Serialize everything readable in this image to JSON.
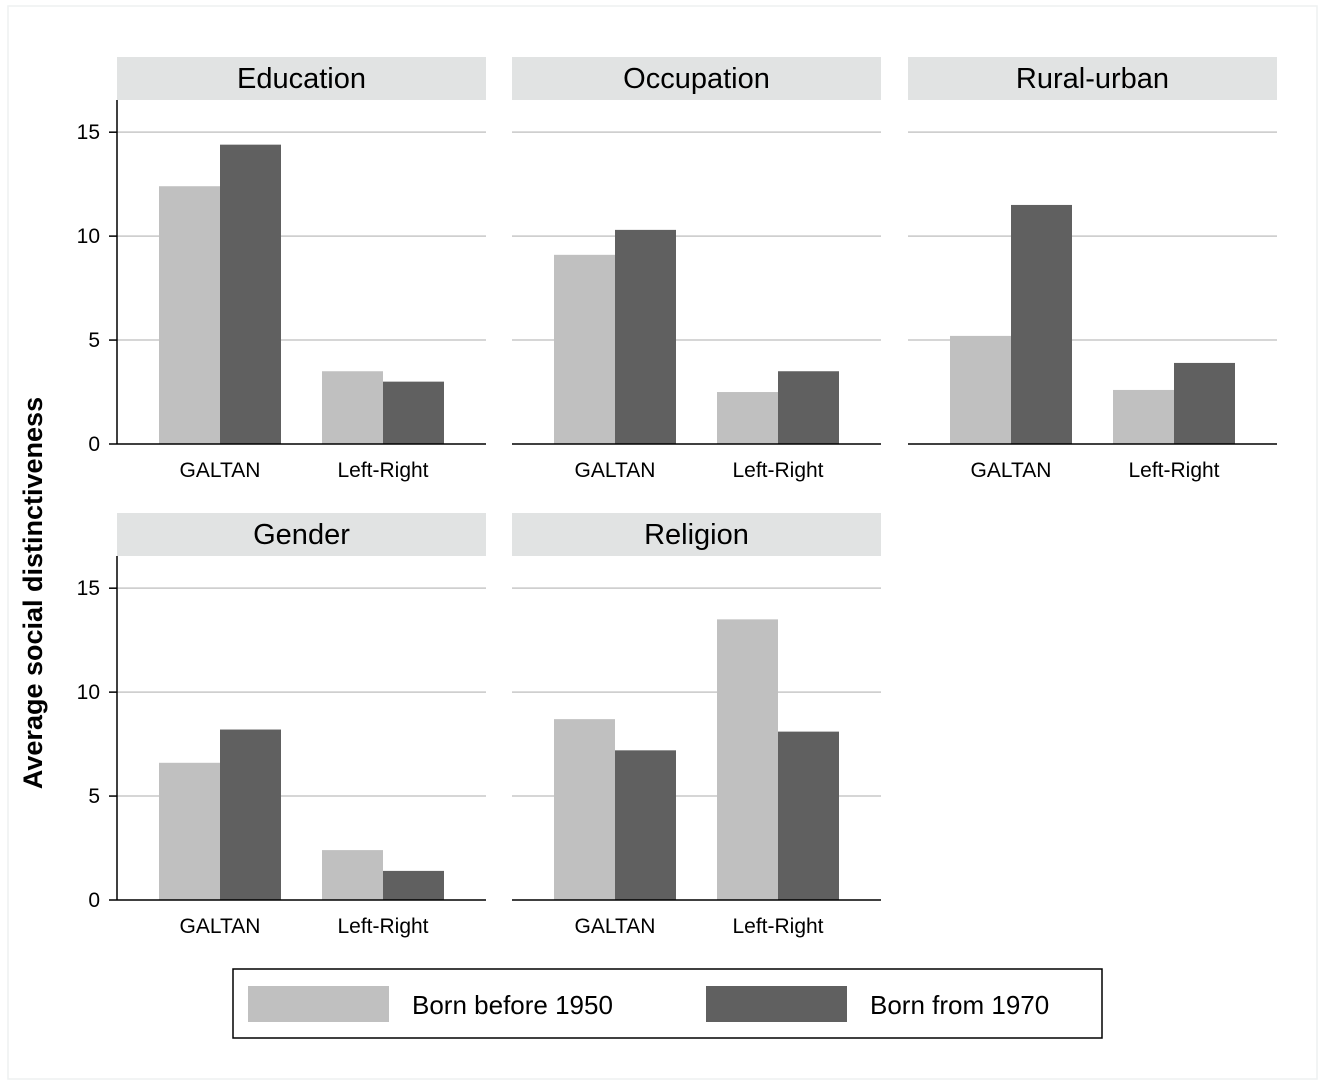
{
  "chart_data": {
    "type": "bar",
    "ylabel": "Average social distinctiveness",
    "ylim": [
      0,
      16.5
    ],
    "yticks": [
      0,
      5,
      10,
      15
    ],
    "categories": [
      "GALTAN",
      "Left-Right"
    ],
    "legend": {
      "position": "bottom",
      "entries": [
        "Born before 1950",
        "Born from 1970"
      ]
    },
    "colors": {
      "Born before 1950": "#c0c0c0",
      "Born from 1970": "#606060",
      "panel_header": "#e1e3e3",
      "gridline": "#c8c8c8",
      "axis": "#000000"
    },
    "grid": true,
    "panels": [
      {
        "title": "Education",
        "series": [
          {
            "name": "Born before 1950",
            "values": [
              12.4,
              3.5
            ]
          },
          {
            "name": "Born from 1970",
            "values": [
              14.4,
              3.0
            ]
          }
        ]
      },
      {
        "title": "Occupation",
        "series": [
          {
            "name": "Born before 1950",
            "values": [
              9.1,
              2.5
            ]
          },
          {
            "name": "Born from 1970",
            "values": [
              10.3,
              3.5
            ]
          }
        ]
      },
      {
        "title": "Rural-urban",
        "series": [
          {
            "name": "Born before 1950",
            "values": [
              5.2,
              2.6
            ]
          },
          {
            "name": "Born from 1970",
            "values": [
              11.5,
              3.9
            ]
          }
        ]
      },
      {
        "title": "Gender",
        "series": [
          {
            "name": "Born before 1950",
            "values": [
              6.6,
              2.4
            ]
          },
          {
            "name": "Born from 1970",
            "values": [
              8.2,
              1.4
            ]
          }
        ]
      },
      {
        "title": "Religion",
        "series": [
          {
            "name": "Born before 1950",
            "values": [
              8.7,
              13.5
            ]
          },
          {
            "name": "Born from 1970",
            "values": [
              7.2,
              8.1
            ]
          }
        ]
      }
    ]
  }
}
